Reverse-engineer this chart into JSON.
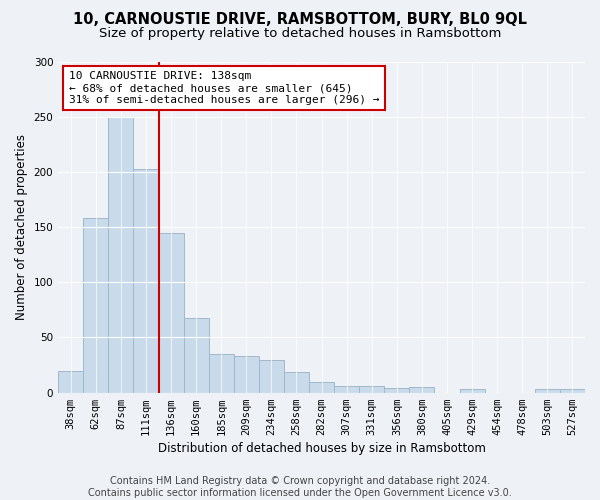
{
  "title": "10, CARNOUSTIE DRIVE, RAMSBOTTOM, BURY, BL0 9QL",
  "subtitle": "Size of property relative to detached houses in Ramsbottom",
  "xlabel": "Distribution of detached houses by size in Ramsbottom",
  "ylabel": "Number of detached properties",
  "categories": [
    "38sqm",
    "62sqm",
    "87sqm",
    "111sqm",
    "136sqm",
    "160sqm",
    "185sqm",
    "209sqm",
    "234sqm",
    "258sqm",
    "282sqm",
    "307sqm",
    "331sqm",
    "356sqm",
    "380sqm",
    "405sqm",
    "429sqm",
    "454sqm",
    "478sqm",
    "503sqm",
    "527sqm"
  ],
  "values": [
    20,
    158,
    250,
    203,
    145,
    68,
    35,
    33,
    30,
    19,
    10,
    6,
    6,
    4,
    5,
    0,
    3,
    0,
    0,
    3,
    3
  ],
  "bar_color": "#c9daea",
  "bar_edge_color": "#a0b8cc",
  "vline_index": 4,
  "annotation_text": "10 CARNOUSTIE DRIVE: 138sqm\n← 68% of detached houses are smaller (645)\n31% of semi-detached houses are larger (296) →",
  "annotation_box_facecolor": "#ffffff",
  "annotation_box_edgecolor": "#cc0000",
  "vline_color": "#cc0000",
  "ylim": [
    0,
    300
  ],
  "yticks": [
    0,
    50,
    100,
    150,
    200,
    250,
    300
  ],
  "footer_line1": "Contains HM Land Registry data © Crown copyright and database right 2024.",
  "footer_line2": "Contains public sector information licensed under the Open Government Licence v3.0.",
  "background_color": "#eef2f7",
  "axes_background_color": "#eef2f7",
  "title_fontsize": 10.5,
  "subtitle_fontsize": 9.5,
  "label_fontsize": 8.5,
  "tick_fontsize": 7.5,
  "footer_fontsize": 7
}
